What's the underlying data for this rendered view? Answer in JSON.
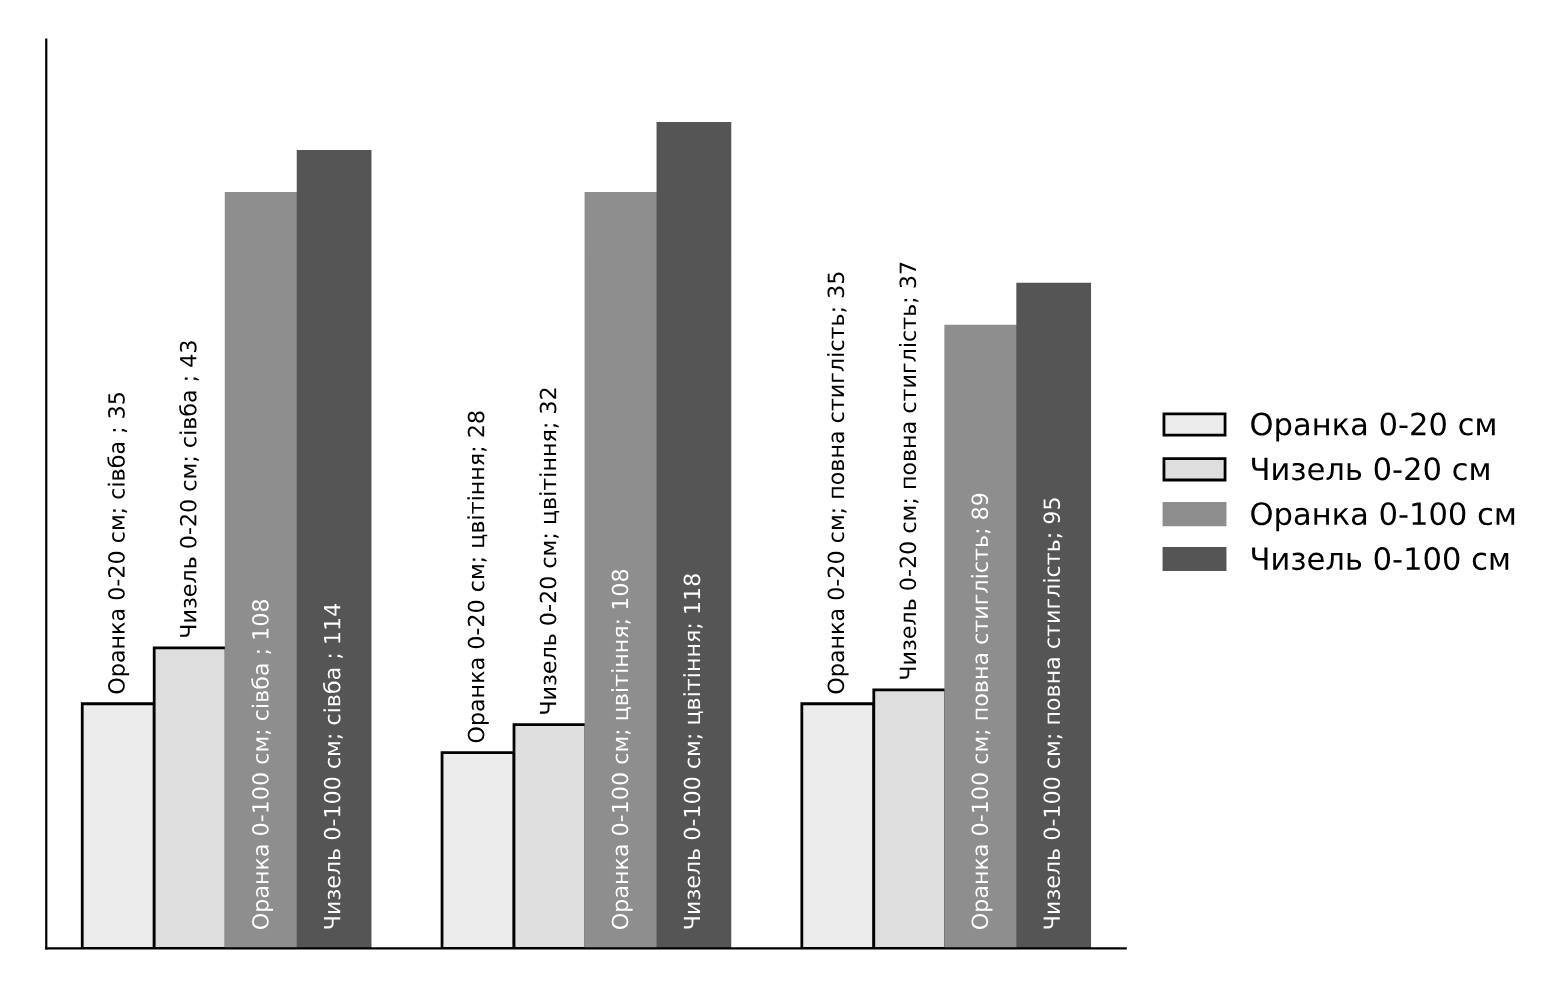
{
  "chart_data": {
    "type": "bar",
    "categories": [
      null,
      null,
      null
    ],
    "tick_labels": false,
    "ylim": [
      0,
      130
    ],
    "legend": "right",
    "series": [
      {
        "name": "Оранка 0-20 см",
        "color": "#ececec",
        "values": [
          35,
          28,
          35
        ],
        "value_labels": [
          "Оранка 0-20 см; сівба ; 35",
          "Оранка 0-20 см; цвітіння; 28",
          "Оранка 0-20 см; повна стиглість; 35"
        ]
      },
      {
        "name": "Чизель 0-20 см",
        "color": "#dedede",
        "values": [
          43,
          32,
          37
        ],
        "value_labels": [
          "Чизель 0-20 см; сівба ; 43",
          "Чизель 0-20 см; цвітіння; 32",
          "Чизель 0-20 см; повна стиглість; 37"
        ]
      },
      {
        "name": "Оранка 0-100 см",
        "color": "#8e8e8e",
        "values": [
          108,
          108,
          89
        ],
        "value_labels": [
          "Оранка 0-100 см; сівба ; 108",
          "Оранка 0-100 см; цвітіння; 108",
          "Оранка 0-100 см; повна стиглість; 89"
        ]
      },
      {
        "name": "Чизель 0-100 см",
        "color": "#555555",
        "values": [
          114,
          118,
          95
        ],
        "value_labels": [
          "Чизель 0-100 см; сівба ; 114",
          "Чизель 0-100 см; цвітіння; 118",
          "Чизель 0-100 см; повна стиглість; 95"
        ]
      }
    ]
  }
}
